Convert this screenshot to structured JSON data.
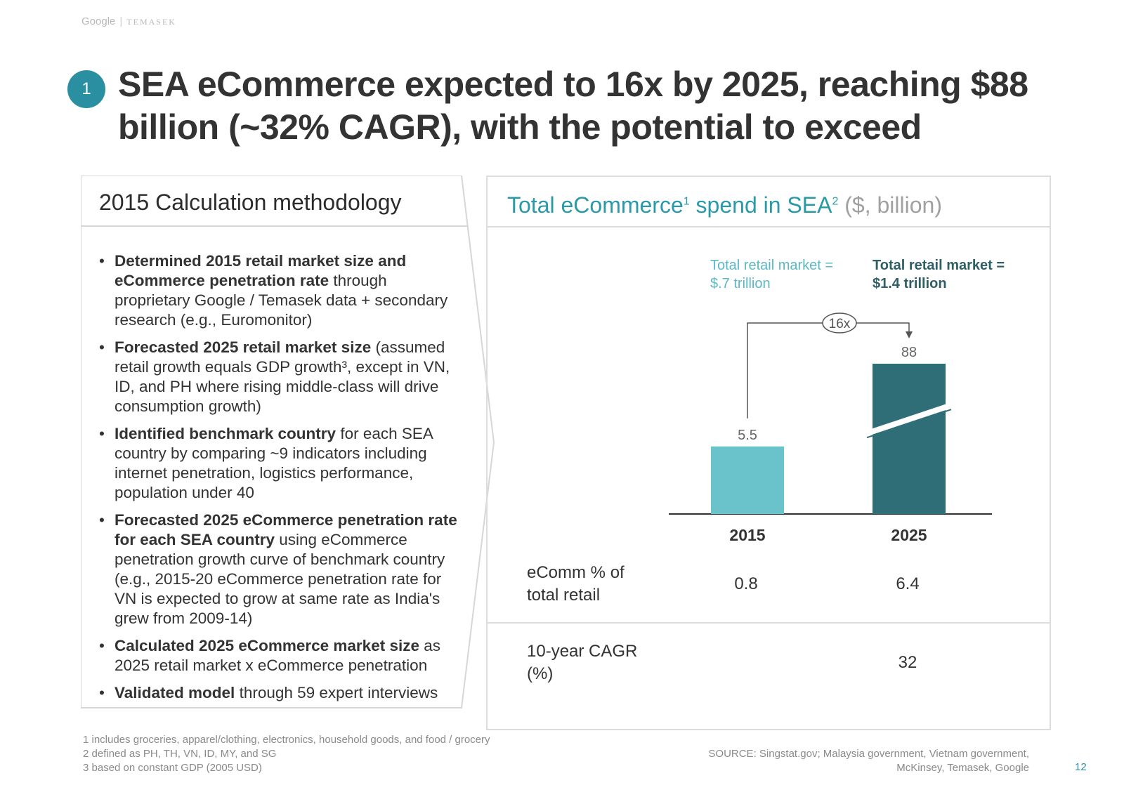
{
  "brand": {
    "google": "Google",
    "separator": "|",
    "temasek": "TEMASEK"
  },
  "slide_number_badge": "1",
  "title": "SEA eCommerce expected to 16x by 2025, reaching $88 billion (~32% CAGR), with the potential to exceed",
  "left": {
    "heading": "2015 Calculation methodology",
    "bullets": [
      {
        "bold": "Determined 2015 retail market size and eCommerce penetration rate",
        "text": " through proprietary Google / Temasek data + secondary research (e.g., Euromonitor)"
      },
      {
        "bold": "Forecasted 2025 retail market size",
        "text": " (assumed retail growth equals GDP growth³, except in VN, ID, and PH where rising middle-class will drive consumption growth)"
      },
      {
        "bold": "Identified benchmark country",
        "text": " for each SEA country by comparing ~9 indicators including internet penetration, logistics performance, population under 40"
      },
      {
        "bold": "Forecasted 2025 eCommerce penetration rate for each SEA country",
        "text": " using eCommerce penetration growth curve of benchmark country (e.g., 2015-20 eCommerce penetration rate for VN is expected to grow at same rate as India's grew from 2009-14)"
      },
      {
        "bold": "Calculated 2025 eCommerce market size",
        "text": " as 2025 retail market x eCommerce penetration"
      },
      {
        "bold": "Validated model",
        "text": " through 59 expert interviews"
      }
    ]
  },
  "right": {
    "heading_main": "Total eCommerce",
    "heading_sup1": "1",
    "heading_mid": " spend in SEA",
    "heading_sup2": "2",
    "heading_unit": " ($, billion)",
    "note_2015_line1": "Total retail market =",
    "note_2015_line2": "$.7 trillion",
    "note_2025_line1": "Total retail market =",
    "note_2025_line2": "$1.4 trillion",
    "growth_label": "16x",
    "rows": {
      "ecomm_label_line1": "eComm % of",
      "ecomm_label_line2": "total retail",
      "ecomm_2015": "0.8",
      "ecomm_2025": "6.4",
      "cagr_label_line1": "10-year CAGR",
      "cagr_label_line2": "(%)",
      "cagr_2025": "32"
    }
  },
  "chart_data": {
    "type": "bar",
    "categories": [
      "2015",
      "2025"
    ],
    "values": [
      5.5,
      88
    ],
    "value_labels": [
      "5.5",
      "88"
    ],
    "title": "Total eCommerce spend in SEA ($, billion)",
    "axis_break_on": "2025",
    "colors": [
      "#6ac3cb",
      "#2f6e76"
    ]
  },
  "footnotes": [
    "1 includes groceries, apparel/clothing, electronics, household goods, and food / grocery",
    "2 defined as PH, TH, VN, ID, MY, and SG",
    "3 based on constant GDP (2005 USD)"
  ],
  "source_line1": "SOURCE: Singstat.gov; Malaysia government, Vietnam government,",
  "source_line2": "McKinsey, Temasek, Google",
  "page_number": "12"
}
